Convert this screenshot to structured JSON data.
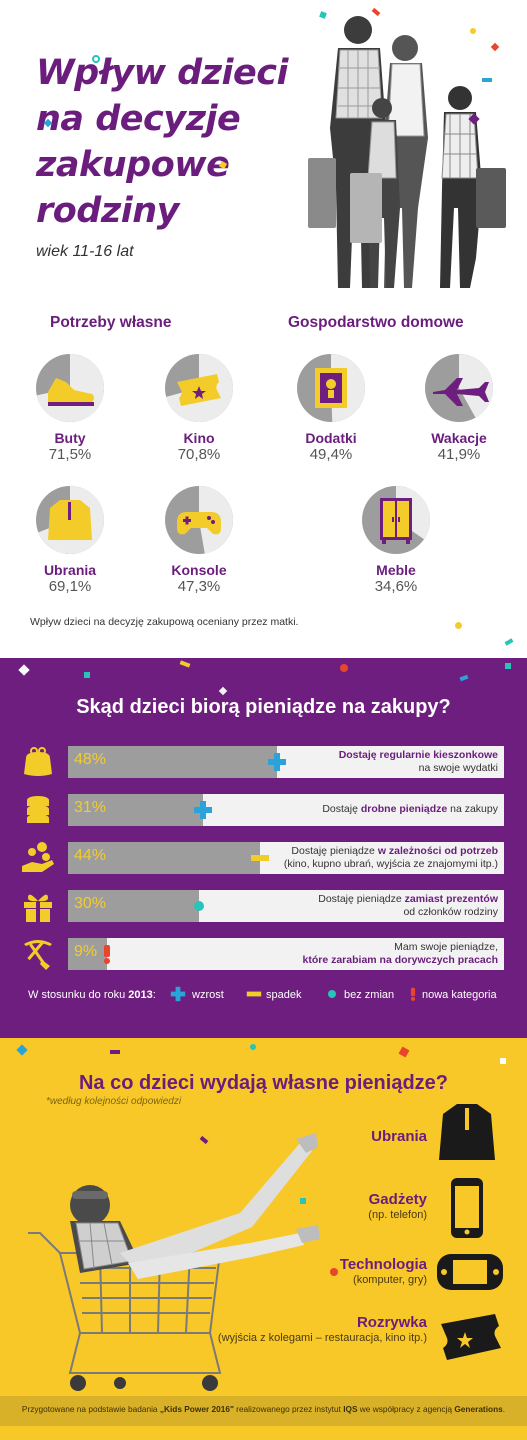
{
  "header": {
    "title_lines": [
      "Wpływ dzieci",
      "na decyzje",
      "zakupowe",
      "rodziny"
    ],
    "subtitle": "wiek 11-16 lat"
  },
  "influence": {
    "left_title": "Potrzeby własne",
    "right_title": "Gospodarstwo domowe",
    "note": "Wpływ dzieci na decyzję zakupową oceniany przez matki.",
    "items": [
      {
        "label": "Buty",
        "value": "71,5%",
        "icon": "shoe-icon"
      },
      {
        "label": "Kino",
        "value": "70,8%",
        "icon": "ticket-icon"
      },
      {
        "label": "Ubrania",
        "value": "69,1%",
        "icon": "jacket-icon"
      },
      {
        "label": "Konsole",
        "value": "47,3%",
        "icon": "gamepad-icon"
      },
      {
        "label": "Dodatki",
        "value": "49,4%",
        "icon": "picture-frame-icon"
      },
      {
        "label": "Wakacje",
        "value": "41,9%",
        "icon": "airplane-icon"
      },
      {
        "label": "Meble",
        "value": "34,6%",
        "icon": "wardrobe-icon"
      }
    ]
  },
  "money_sources": {
    "title": "Skąd dzieci biorą pieniądze na zakupy?",
    "rows": [
      {
        "pct": "48%",
        "value": 48,
        "trend": "wzrost",
        "icon": "purse-icon",
        "pre": "",
        "bold": "Dostaję regularnie kieszonkowe",
        "post": "na swoje wydatki"
      },
      {
        "pct": "31%",
        "value": 31,
        "trend": "wzrost",
        "icon": "coins-icon",
        "pre": "Dostaję ",
        "bold": "drobne pieniądze",
        "post": " na zakupy"
      },
      {
        "pct": "44%",
        "value": 44,
        "trend": "spadek",
        "icon": "hand-coins-icon",
        "pre": "Dostaję pieniądze ",
        "bold": "w zależności od potrzeb",
        "post": "(kino, kupno ubrań, wyjścia ze znajomymi itp.)"
      },
      {
        "pct": "30%",
        "value": 30,
        "trend": "bez zmian",
        "icon": "gift-icon",
        "pre": "Dostaję pieniądze ",
        "bold": "zamiast prezentów",
        "post": "od członków rodziny"
      },
      {
        "pct": "9%",
        "value": 9,
        "trend": "nowa kategoria",
        "icon": "pickaxe-shovel-icon",
        "pre": "Mam swoje pieniądze,",
        "bold": "które zarabiam na dorywczych pracach",
        "post": ""
      }
    ],
    "legend": {
      "prefix": "W stosunku do roku ",
      "year": "2013",
      "colon": ":",
      "up": "wzrost",
      "down": "spadek",
      "same": "bez zmian",
      "new": "nowa kategoria"
    }
  },
  "spending": {
    "title": "Na co dzieci wydają własne pieniądze?",
    "note": "*według kolejności odpowiedzi",
    "items": [
      {
        "label": "Ubrania",
        "sub": "",
        "icon": "jacket-icon"
      },
      {
        "label": "Gadżety",
        "sub": "(np. telefon)",
        "icon": "phone-icon"
      },
      {
        "label": "Technologia",
        "sub": "(komputer, gry)",
        "icon": "handheld-console-icon"
      },
      {
        "label": "Rozrywka",
        "sub": "(wyjścia z kolegami – restauracja, kino itp.)",
        "icon": "ticket-icon"
      }
    ]
  },
  "footer": {
    "pre": "Przygotowane na podstawie badania ",
    "study": "„Kids Power 2016\"",
    "mid": " realizowanego przez instytut ",
    "institute": "IQS",
    "mid2": " we współpracy z agencją ",
    "agency": "Generations",
    "end": "."
  },
  "colors": {
    "purple": "#6e1e7e",
    "yellow": "#f8c828",
    "gray": "#9d9d9d",
    "light": "#f2f2f2",
    "up": "#2aa4d8",
    "down": "#f4cc2a",
    "same": "#27c4b8",
    "new": "#e8452c"
  },
  "chart_data": [
    {
      "type": "pie",
      "title": "Potrzeby własne",
      "categories": [
        "Buty",
        "Kino",
        "Ubrania",
        "Konsole"
      ],
      "values": [
        71.5,
        70.8,
        69.1,
        47.3
      ]
    },
    {
      "type": "pie",
      "title": "Gospodarstwo domowe",
      "categories": [
        "Dodatki",
        "Wakacje",
        "Meble"
      ],
      "values": [
        49.4,
        41.9,
        34.6
      ]
    },
    {
      "type": "bar",
      "title": "Skąd dzieci biorą pieniądze na zakupy?",
      "categories": [
        "Dostaję regularnie kieszonkowe na swoje wydatki",
        "Dostaję drobne pieniądze na zakupy",
        "Dostaję pieniądze w zależności od potrzeb",
        "Dostaję pieniądze zamiast prezentów od członków rodziny",
        "Mam swoje pieniądze, które zarabiam na dorywczych pracach"
      ],
      "values": [
        48,
        31,
        44,
        30,
        9
      ],
      "trend": [
        "wzrost",
        "wzrost",
        "spadek",
        "bez zmian",
        "nowa kategoria"
      ],
      "ylim": [
        0,
        100
      ]
    }
  ]
}
